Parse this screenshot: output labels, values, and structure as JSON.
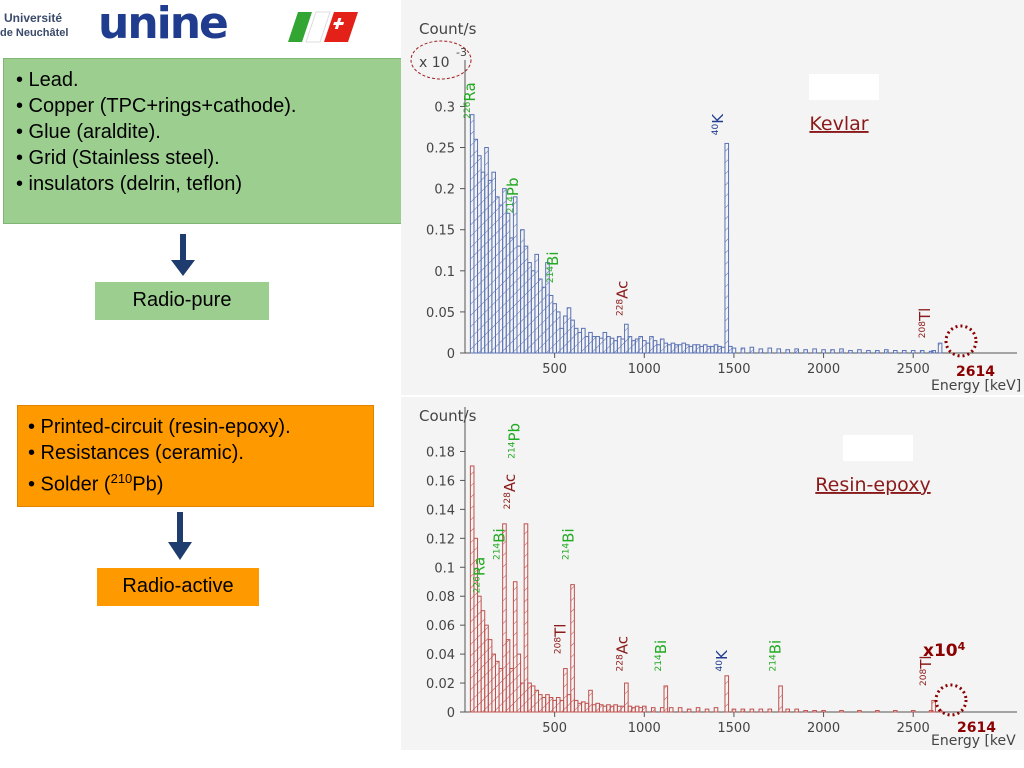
{
  "logo": {
    "line1": "Université",
    "line2": "de Neuchâtel",
    "wordmark": "unine",
    "flag_colors": [
      "#33a532",
      "#ffffff",
      "#e32119"
    ]
  },
  "left": {
    "materials_pure": [
      "• Lead.",
      "• Copper (TPC+rings+cathode).",
      "• Glue (araldite).",
      "• Grid (Stainless steel).",
      "• insulators (delrin, teflon)"
    ],
    "radio_pure_label": "Radio-pure",
    "materials_active": [
      "• Printed-circuit (resin-epoxy).",
      "• Resistances (ceramic)."
    ],
    "solder_prefix": "• Solder (",
    "solder_sup": "210",
    "solder_suffix": "Pb)",
    "radio_active_label": "Radio-active"
  },
  "colors": {
    "green_box": "#9ccf8f",
    "orange_box": "#ff9900",
    "arrow": "#1f3c6e",
    "kevlar_line": "#5a72b5",
    "resin_line": "#c0504d"
  },
  "chart_data": [
    {
      "type": "bar",
      "title": "Kevlar",
      "ylabel": "Count/s",
      "xlabel": "Energy [keV]",
      "yscale_label": "x 10",
      "yscale_exp": "-3",
      "xlim": [
        0,
        2800
      ],
      "ylim": [
        0,
        0.32
      ],
      "xticks": [
        "500",
        "1000",
        "1500",
        "2000",
        "2500"
      ],
      "xtick_values": [
        500,
        1000,
        1500,
        2000,
        2500
      ],
      "yticks": [
        "0",
        "0.05",
        "0.1",
        "0.15",
        "0.2",
        "0.25",
        "0.3"
      ],
      "ytick_values": [
        0,
        0.05,
        0.1,
        0.15,
        0.2,
        0.25,
        0.3
      ],
      "hatched": true,
      "bin_width": 20,
      "peaks_x": [
        40,
        60,
        80,
        100,
        120,
        140,
        160,
        180,
        200,
        220,
        240,
        260,
        280,
        300,
        320,
        340,
        360,
        380,
        400,
        420,
        440,
        460,
        480,
        500,
        520,
        540,
        560,
        580,
        600,
        620,
        640,
        660,
        680,
        700,
        720,
        740,
        760,
        780,
        800,
        820,
        840,
        860,
        880,
        900,
        920,
        940,
        960,
        980,
        1000,
        1020,
        1040,
        1060,
        1080,
        1100,
        1120,
        1140,
        1160,
        1180,
        1200,
        1220,
        1240,
        1260,
        1280,
        1300,
        1320,
        1340,
        1360,
        1380,
        1400,
        1420,
        1440,
        1460,
        1480,
        1500,
        1550,
        1600,
        1650,
        1700,
        1750,
        1800,
        1850,
        1900,
        1950,
        2000,
        2050,
        2100,
        2150,
        2200,
        2250,
        2300,
        2350,
        2400,
        2450,
        2500,
        2550,
        2600,
        2614,
        2650
      ],
      "values": [
        0.29,
        0.26,
        0.24,
        0.22,
        0.25,
        0.21,
        0.22,
        0.19,
        0.18,
        0.2,
        0.17,
        0.14,
        0.19,
        0.13,
        0.15,
        0.13,
        0.11,
        0.1,
        0.12,
        0.09,
        0.08,
        0.11,
        0.07,
        0.06,
        0.05,
        0.03,
        0.045,
        0.055,
        0.04,
        0.03,
        0.025,
        0.03,
        0.02,
        0.025,
        0.02,
        0.02,
        0.018,
        0.025,
        0.02,
        0.018,
        0.015,
        0.02,
        0.017,
        0.035,
        0.02,
        0.015,
        0.017,
        0.02,
        0.015,
        0.012,
        0.02,
        0.015,
        0.01,
        0.017,
        0.012,
        0.01,
        0.012,
        0.01,
        0.01,
        0.012,
        0.01,
        0.008,
        0.01,
        0.01,
        0.008,
        0.01,
        0.008,
        0.008,
        0.01,
        0.008,
        0.007,
        0.255,
        0.008,
        0.006,
        0.006,
        0.007,
        0.005,
        0.006,
        0.005,
        0.004,
        0.005,
        0.004,
        0.005,
        0.004,
        0.004,
        0.005,
        0.003,
        0.004,
        0.003,
        0.003,
        0.004,
        0.003,
        0.003,
        0.003,
        0.003,
        0.002,
        0.003,
        0.012,
        0.002
      ],
      "peak_labels": [
        {
          "sup": "226",
          "text": "Ra",
          "x": 55,
          "y": 0.285,
          "color": "#22aa22"
        },
        {
          "sup": "214",
          "text": "Pb",
          "x": 295,
          "y": 0.17,
          "color": "#22aa22"
        },
        {
          "sup": "214",
          "text": "Bi",
          "x": 520,
          "y": 0.085,
          "color": "#22aa22"
        },
        {
          "sup": "228",
          "text": "Ac",
          "x": 905,
          "y": 0.045,
          "color": "#8b1a1a"
        },
        {
          "sup": "40",
          "text": "K",
          "x": 1440,
          "y": 0.265,
          "color": "#1f3c8e"
        },
        {
          "sup": "208",
          "text": "Tl",
          "x": 2595,
          "y": 0.018,
          "color": "#8b1a1a"
        }
      ],
      "annotation": "2614"
    },
    {
      "type": "bar",
      "title": "Resin-epoxy",
      "ylabel": "Count/s",
      "xlabel": "Energy [keV",
      "xlim": [
        0,
        2800
      ],
      "ylim": [
        0,
        0.19
      ],
      "xticks": [
        "500",
        "1000",
        "1500",
        "2000",
        "2500"
      ],
      "xtick_values": [
        500,
        1000,
        1500,
        2000,
        2500
      ],
      "yticks": [
        "0",
        "0.02",
        "0.04",
        "0.06",
        "0.08",
        "0.1",
        "0.12",
        "0.14",
        "0.16",
        "0.18"
      ],
      "ytick_values": [
        0,
        0.02,
        0.04,
        0.06,
        0.08,
        0.1,
        0.12,
        0.14,
        0.16,
        0.18
      ],
      "hatched": true,
      "multiplier_label": "x10",
      "multiplier_sup": "4",
      "bin_width": 20,
      "peaks_x": [
        40,
        60,
        80,
        100,
        120,
        140,
        160,
        180,
        200,
        220,
        240,
        260,
        280,
        300,
        320,
        340,
        360,
        380,
        400,
        420,
        440,
        460,
        480,
        500,
        520,
        540,
        560,
        580,
        600,
        620,
        640,
        660,
        680,
        700,
        720,
        740,
        760,
        780,
        800,
        820,
        840,
        860,
        880,
        900,
        920,
        940,
        960,
        980,
        1000,
        1050,
        1100,
        1120,
        1150,
        1200,
        1250,
        1300,
        1350,
        1400,
        1460,
        1500,
        1550,
        1600,
        1650,
        1700,
        1760,
        1800,
        1850,
        1900,
        1950,
        2000,
        2100,
        2200,
        2300,
        2400,
        2500,
        2600,
        2614,
        2650
      ],
      "values": [
        0.17,
        0.12,
        0.08,
        0.07,
        0.06,
        0.05,
        0.04,
        0.035,
        0.03,
        0.13,
        0.05,
        0.03,
        0.09,
        0.04,
        0.02,
        0.13,
        0.02,
        0.018,
        0.015,
        0.012,
        0.01,
        0.012,
        0.01,
        0.008,
        0.01,
        0.008,
        0.03,
        0.012,
        0.088,
        0.008,
        0.006,
        0.007,
        0.006,
        0.015,
        0.005,
        0.006,
        0.005,
        0.004,
        0.005,
        0.004,
        0.005,
        0.004,
        0.004,
        0.02,
        0.004,
        0.003,
        0.004,
        0.003,
        0.004,
        0.003,
        0.003,
        0.018,
        0.003,
        0.003,
        0.002,
        0.003,
        0.002,
        0.003,
        0.025,
        0.002,
        0.002,
        0.002,
        0.002,
        0.002,
        0.018,
        0.002,
        0.002,
        0.001,
        0.001,
        0.001,
        0.001,
        0.001,
        0.001,
        0.001,
        0.001,
        0.001,
        0.008,
        0.001
      ],
      "peak_labels": [
        {
          "sup": "226",
          "text": "Ra",
          "x": 110,
          "y": 0.082,
          "color": "#22aa22"
        },
        {
          "sup": "214",
          "text": "Bi",
          "x": 220,
          "y": 0.105,
          "color": "#22aa22"
        },
        {
          "sup": "228",
          "text": "Ac",
          "x": 280,
          "y": 0.14,
          "color": "#8b1a1a"
        },
        {
          "sup": "214",
          "text": "Pb",
          "x": 305,
          "y": 0.175,
          "color": "#22aa22"
        },
        {
          "sup": "214",
          "text": "Bi",
          "x": 605,
          "y": 0.105,
          "color": "#22aa22"
        },
        {
          "sup": "208",
          "text": "Tl",
          "x": 560,
          "y": 0.04,
          "color": "#8b1a1a"
        },
        {
          "sup": "228",
          "text": "Ac",
          "x": 905,
          "y": 0.028,
          "color": "#8b1a1a"
        },
        {
          "sup": "214",
          "text": "Bi",
          "x": 1120,
          "y": 0.028,
          "color": "#22aa22"
        },
        {
          "sup": "40",
          "text": "K",
          "x": 1460,
          "y": 0.028,
          "color": "#1f3c8e"
        },
        {
          "sup": "214",
          "text": "Bi",
          "x": 1760,
          "y": 0.028,
          "color": "#22aa22"
        },
        {
          "sup": "208",
          "text": "Tl",
          "x": 2600,
          "y": 0.018,
          "color": "#8b1a1a"
        }
      ],
      "annotation": "2614"
    }
  ]
}
